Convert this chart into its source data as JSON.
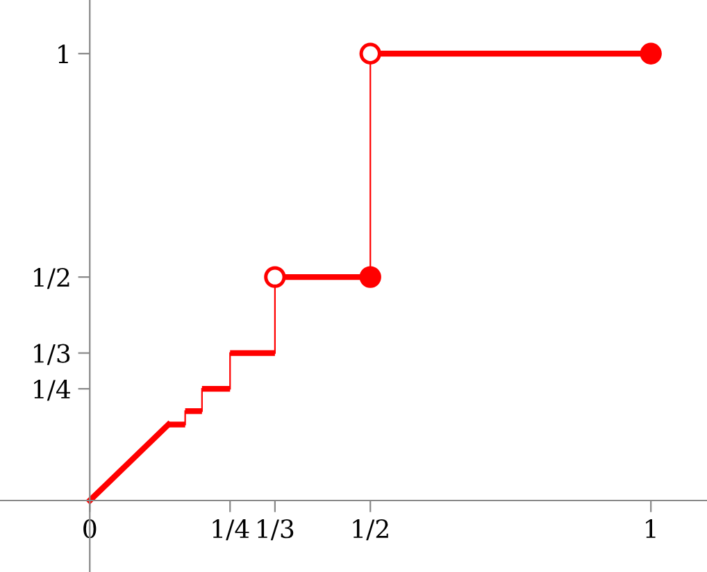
{
  "chart_data": {
    "type": "step",
    "xlim": [
      -0.16,
      1.1
    ],
    "ylim": [
      -0.16,
      1.12
    ],
    "xticks": [
      {
        "value": 0,
        "label": "0"
      },
      {
        "value": 0.25,
        "label": "1/4"
      },
      {
        "value": 0.33,
        "label": "1/3"
      },
      {
        "value": 0.5,
        "label": "1/2"
      },
      {
        "value": 1,
        "label": "1"
      }
    ],
    "yticks": [
      {
        "value": 0.25,
        "label": "1/4"
      },
      {
        "value": 0.33,
        "label": "1/3"
      },
      {
        "value": 0.5,
        "label": "1/2"
      },
      {
        "value": 1,
        "label": "1"
      }
    ],
    "series": [
      {
        "color": "#ff0000",
        "x": [
          0,
          0.14,
          0.17,
          0.2,
          0.25,
          0.33,
          0.5,
          1
        ],
        "values": [
          0,
          0.17,
          0.2,
          0.25,
          0.33,
          0.5,
          1,
          1
        ]
      },
      {
        "type": "scatter",
        "color": "#ff0000",
        "marker": "circle",
        "x": [
          0.5,
          1
        ],
        "values": [
          0.5,
          1
        ]
      },
      {
        "type": "scatter",
        "color": "#ffffff",
        "marker": "circle",
        "x": [
          0.33,
          0.5
        ],
        "values": [
          0.5,
          1
        ]
      }
    ]
  }
}
